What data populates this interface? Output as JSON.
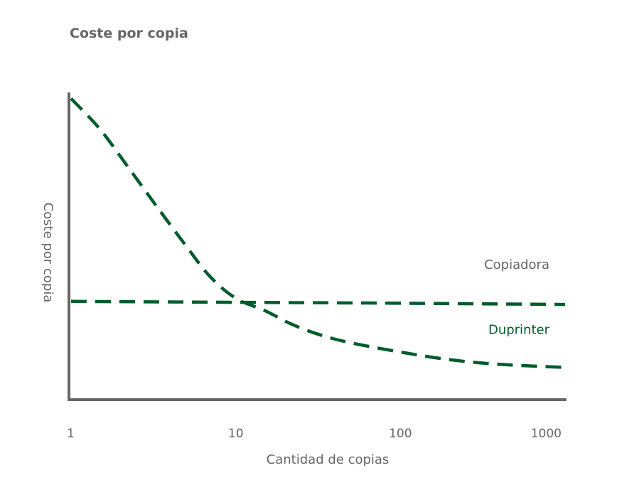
{
  "chart_data": {
    "type": "line",
    "title": "Coste por copia",
    "xlabel": "Cantidad de copias",
    "ylabel": "Coste por copia",
    "x_scale": "log",
    "x_ticks": [
      1,
      10,
      100,
      1000
    ],
    "x_tick_labels": [
      "1",
      "10",
      "100",
      "1000"
    ],
    "xlim": [
      1,
      1000
    ],
    "ylim": [
      0,
      100
    ],
    "y_ticks_shown": false,
    "grid": false,
    "series": [
      {
        "name": "Copiadora",
        "color": "#666666",
        "line_color": "#005c2b",
        "line_style": "dashed",
        "x": [
          1,
          10,
          100,
          1000
        ],
        "y": [
          32,
          31.7,
          31.4,
          31
        ]
      },
      {
        "name": "Duprinter",
        "color": "#005c2b",
        "line_color": "#005c2b",
        "line_style": "dashed",
        "x": [
          1,
          1.5,
          2.2,
          3.3,
          5,
          7,
          10,
          15,
          22,
          33,
          50,
          100,
          200,
          400,
          1000
        ],
        "y": [
          98,
          88,
          76,
          63,
          50,
          40,
          33,
          29,
          24.5,
          21,
          18.5,
          15.5,
          13,
          11.5,
          10.5
        ]
      }
    ]
  }
}
